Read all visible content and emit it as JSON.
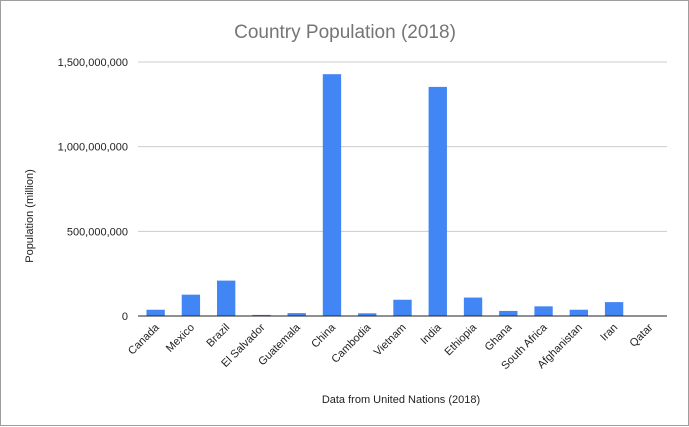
{
  "chart_data": {
    "type": "bar",
    "title": "Country Population (2018)",
    "xlabel": "Data from United Nations (2018)",
    "ylabel": "Population (million)",
    "ylim": [
      0,
      1500000000
    ],
    "yticks": [
      "0",
      "500,000,000",
      "1,000,000,000",
      "1,500,000,000"
    ],
    "ytick_values": [
      0,
      500000000,
      1000000000,
      1500000000
    ],
    "categories": [
      "Canada",
      "Mexico",
      "Brazil",
      "El Salvador",
      "Guatemala",
      "China",
      "Cambodia",
      "Vietnam",
      "India",
      "Ethiopia",
      "Ghana",
      "South Africa",
      "Afghanistan",
      "Iran",
      "Qatar"
    ],
    "values": [
      37000000,
      126000000,
      209000000,
      6400000,
      17000000,
      1428000000,
      16000000,
      96000000,
      1353000000,
      109000000,
      30000000,
      57000000,
      37000000,
      82000000,
      2800000
    ],
    "bar_color": "#4285f4",
    "grid": true,
    "legend": "none"
  }
}
